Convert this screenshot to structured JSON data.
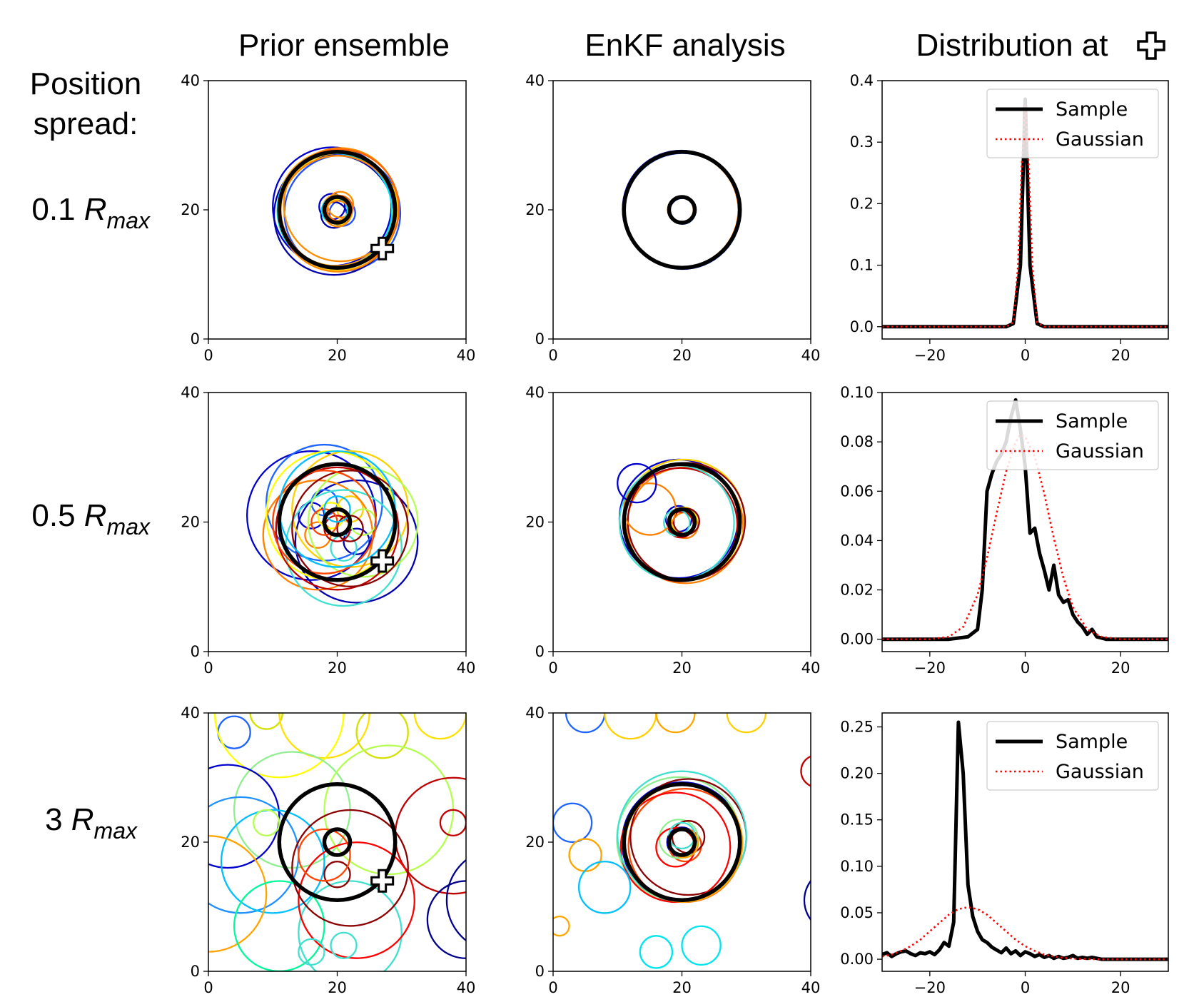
{
  "column_titles": [
    "Prior ensemble",
    "EnKF analysis",
    "Distribution at"
  ],
  "row_header": [
    "Position",
    "spread:"
  ],
  "rows": [
    {
      "prefix": "0.1 ",
      "symbol": "R",
      "subscript": "max"
    },
    {
      "prefix": "0.5 ",
      "symbol": "R",
      "subscript": "max"
    },
    {
      "prefix": "3 ",
      "symbol": "R",
      "subscript": "max"
    }
  ],
  "legend": {
    "sample": "Sample",
    "gaussian": "Gaussian"
  },
  "marker_icon": "white-cross-icon",
  "colors": {
    "truth": "#000000",
    "gaussian": "#ff0000",
    "sample": "#000000"
  },
  "chart_data": [
    {
      "type": "line",
      "title": "Distribution at",
      "row": "0.1 Rmax",
      "xlim": [
        -30,
        30
      ],
      "ylim": [
        -0.02,
        0.4
      ],
      "xticks": [
        -20,
        0,
        20
      ],
      "yticks": [
        0.0,
        0.1,
        0.2,
        0.3,
        0.4
      ],
      "ytick_labels": [
        "0.0",
        "0.1",
        "0.2",
        "0.3",
        "0.4"
      ],
      "legend_position": "top-right",
      "series": [
        {
          "name": "Sample",
          "style": "solid",
          "x": [
            -30,
            -4,
            -2.5,
            -1,
            0,
            1,
            2.5,
            4,
            30
          ],
          "y": [
            0,
            0,
            0.005,
            0.1,
            0.37,
            0.1,
            0.005,
            0,
            0
          ]
        },
        {
          "name": "Gaussian",
          "style": "dotted",
          "x": [
            -30,
            -4,
            -2.5,
            -1.5,
            -0.75,
            0,
            0.75,
            1.5,
            2.5,
            4,
            30
          ],
          "y": [
            0,
            0,
            0.007,
            0.1,
            0.26,
            0.36,
            0.26,
            0.1,
            0.007,
            0,
            0
          ]
        }
      ]
    },
    {
      "type": "line",
      "title": "Distribution at",
      "row": "0.5 Rmax",
      "xlim": [
        -30,
        30
      ],
      "ylim": [
        -0.005,
        0.1
      ],
      "xticks": [
        -20,
        0,
        20
      ],
      "yticks": [
        0.0,
        0.02,
        0.04,
        0.06,
        0.08,
        0.1
      ],
      "ytick_labels": [
        "0.00",
        "0.02",
        "0.04",
        "0.06",
        "0.08",
        "0.10"
      ],
      "legend_position": "top-right",
      "series": [
        {
          "name": "Sample",
          "style": "solid",
          "x": [
            -30,
            -16,
            -14,
            -12,
            -10,
            -9,
            -8,
            -7,
            -6,
            -5,
            -4,
            -3,
            -2,
            -1,
            0,
            1,
            2,
            3,
            4,
            5,
            6,
            7,
            8,
            9,
            10,
            11,
            12,
            13,
            14,
            15,
            16,
            17,
            30
          ],
          "y": [
            0,
            0,
            0.0005,
            0.001,
            0.004,
            0.02,
            0.06,
            0.067,
            0.072,
            0.075,
            0.08,
            0.09,
            0.097,
            0.085,
            0.07,
            0.043,
            0.045,
            0.035,
            0.028,
            0.02,
            0.03,
            0.018,
            0.015,
            0.016,
            0.01,
            0.007,
            0.005,
            0.002,
            0.004,
            0.001,
            0.0005,
            0,
            0
          ]
        },
        {
          "name": "Gaussian",
          "style": "dotted",
          "x": [
            -30,
            -20,
            -16,
            -13,
            -10,
            -8,
            -6,
            -4,
            -2,
            -1,
            0,
            2,
            4,
            6,
            8,
            10,
            13,
            16,
            20,
            30
          ],
          "y": [
            0,
            0,
            0.001,
            0.005,
            0.018,
            0.033,
            0.051,
            0.068,
            0.08,
            0.083,
            0.082,
            0.074,
            0.059,
            0.041,
            0.025,
            0.013,
            0.004,
            0.001,
            0,
            0
          ]
        }
      ]
    },
    {
      "type": "line",
      "title": "Distribution at",
      "row": "3 Rmax",
      "xlim": [
        -30,
        30
      ],
      "ylim": [
        -0.013,
        0.265
      ],
      "xticks": [
        -20,
        0,
        20
      ],
      "yticks": [
        0.0,
        0.05,
        0.1,
        0.15,
        0.2,
        0.25
      ],
      "ytick_labels": [
        "0.00",
        "0.05",
        "0.10",
        "0.15",
        "0.20",
        "0.25"
      ],
      "legend_position": "top-right",
      "series": [
        {
          "name": "Sample",
          "style": "solid",
          "x": [
            -30,
            -29,
            -28,
            -27,
            -26,
            -25,
            -24,
            -23,
            -22,
            -21,
            -20,
            -19,
            -18,
            -17,
            -16,
            -15,
            -14,
            -13,
            -12,
            -11,
            -10,
            -9,
            -8,
            -7,
            -6,
            -5,
            -4,
            -3,
            -2,
            -1,
            0,
            1,
            2,
            3,
            4,
            5,
            6,
            7,
            8,
            9,
            10,
            11,
            12,
            13,
            14,
            15,
            16,
            30
          ],
          "y": [
            0.005,
            0.007,
            0.003,
            0.006,
            0.008,
            0.009,
            0.006,
            0.004,
            0.007,
            0.006,
            0.008,
            0.005,
            0.01,
            0.018,
            0.014,
            0.04,
            0.255,
            0.2,
            0.08,
            0.046,
            0.03,
            0.021,
            0.018,
            0.013,
            0.01,
            0.007,
            0.012,
            0.006,
            0.009,
            0.004,
            0.008,
            0.006,
            0.003,
            0.005,
            0.002,
            0.004,
            0.001,
            0.003,
            0.001,
            0.002,
            0.004,
            0.001,
            0.002,
            0.001,
            0.002,
            0.001,
            0,
            0
          ]
        },
        {
          "name": "Gaussian",
          "style": "dotted",
          "x": [
            -30,
            -28,
            -26,
            -24,
            -22,
            -20,
            -18,
            -16,
            -14,
            -12,
            -10,
            -8,
            -6,
            -4,
            -2,
            0,
            2,
            4,
            6,
            8,
            10,
            12,
            14,
            16,
            18,
            20,
            30
          ],
          "y": [
            0.003,
            0.005,
            0.009,
            0.014,
            0.021,
            0.03,
            0.039,
            0.048,
            0.054,
            0.056,
            0.054,
            0.048,
            0.039,
            0.03,
            0.021,
            0.014,
            0.009,
            0.005,
            0.003,
            0.0015,
            0.0007,
            0.0003,
            0.0001,
            0,
            0,
            0,
            0
          ]
        }
      ]
    }
  ],
  "ensemble_panels": {
    "xlim": [
      0,
      40
    ],
    "ylim": [
      0,
      40
    ],
    "xticks": [
      0,
      20,
      40
    ],
    "yticks": [
      0,
      20,
      40
    ],
    "truth": {
      "center": [
        20,
        20
      ],
      "outer_radius": 9,
      "inner_radius": 2
    },
    "marker": [
      27,
      14
    ],
    "prior": [
      {
        "row": "0.1 Rmax",
        "members": [
          {
            "cx": 19.2,
            "cy": 20.5,
            "r": 9.2,
            "ri": 2,
            "color": "#0000cd"
          },
          {
            "cx": 20.8,
            "cy": 19.5,
            "r": 9.0,
            "ri": 2,
            "color": "#1e50ff"
          },
          {
            "cx": 19.5,
            "cy": 19.2,
            "r": 9.3,
            "ri": 2,
            "color": "#0000aa"
          },
          {
            "cx": 20.5,
            "cy": 20.8,
            "r": 8.8,
            "ri": 2,
            "color": "#ff8c00"
          },
          {
            "cx": 19.8,
            "cy": 20.3,
            "r": 9.0,
            "ri": 2,
            "color": "#ffa500"
          },
          {
            "cx": 20.3,
            "cy": 19.7,
            "r": 9.1,
            "ri": 2,
            "color": "#ffd000"
          },
          {
            "cx": 19.6,
            "cy": 19.9,
            "r": 8.9,
            "ri": 2,
            "color": "#00e5ee"
          },
          {
            "cx": 20.4,
            "cy": 20.2,
            "r": 9.2,
            "ri": 2,
            "color": "#ff6400"
          },
          {
            "cx": 20.1,
            "cy": 19.4,
            "r": 9.0,
            "ri": 2,
            "color": "#ff8800"
          }
        ]
      },
      {
        "row": "0.5 Rmax",
        "members": [
          {
            "cx": 16,
            "cy": 21,
            "r": 10,
            "ri": 2,
            "color": "#0000cd"
          },
          {
            "cx": 23,
            "cy": 17,
            "r": 9.5,
            "ri": 2,
            "color": "#0000b0"
          },
          {
            "cx": 18,
            "cy": 23,
            "r": 9,
            "ri": 2,
            "color": "#1e64ff"
          },
          {
            "cx": 22,
            "cy": 22,
            "r": 9,
            "ri": 2,
            "color": "#ffd000"
          },
          {
            "cx": 17,
            "cy": 18,
            "r": 8.5,
            "ri": 2,
            "color": "#ff7f00"
          },
          {
            "cx": 21,
            "cy": 16,
            "r": 9,
            "ri": 2,
            "color": "#40e0d0"
          },
          {
            "cx": 19,
            "cy": 21,
            "r": 10,
            "ri": 2,
            "color": "#ffff00"
          },
          {
            "cx": 24,
            "cy": 20,
            "r": 8.5,
            "ri": 2,
            "color": "#b4ff50"
          },
          {
            "cx": 20,
            "cy": 19,
            "r": 9.5,
            "ri": 2,
            "color": "#c00000"
          },
          {
            "cx": 22,
            "cy": 19,
            "r": 9,
            "ri": 2,
            "color": "#8b0000"
          },
          {
            "cx": 18,
            "cy": 20,
            "r": 8,
            "ri": 2,
            "color": "#ff4500"
          },
          {
            "cx": 20,
            "cy": 22,
            "r": 9,
            "ri": 2,
            "color": "#00bfff"
          }
        ]
      },
      {
        "row": "3 Rmax",
        "members": [
          {
            "cx": 4,
            "cy": 37,
            "r": 2.5,
            "ri": 0,
            "color": "#1e64ff"
          },
          {
            "cx": 9,
            "cy": 40,
            "r": 2.5,
            "ri": 0,
            "color": "#d4e000"
          },
          {
            "cx": 18,
            "cy": 40,
            "r": 7,
            "ri": 0,
            "color": "#ffe000"
          },
          {
            "cx": 27,
            "cy": 37,
            "r": 4,
            "ri": 0,
            "color": "#d4e000"
          },
          {
            "cx": 36,
            "cy": 40,
            "r": 4,
            "ri": 0,
            "color": "#ffe000"
          },
          {
            "cx": 11,
            "cy": 40,
            "r": 10,
            "ri": 0,
            "color": "#ffff00"
          },
          {
            "cx": 13,
            "cy": 25,
            "r": 9,
            "ri": 0,
            "color": "#90ee90"
          },
          {
            "cx": 28,
            "cy": 25,
            "r": 10,
            "ri": 0,
            "color": "#b4ff50"
          },
          {
            "cx": 38,
            "cy": 21,
            "r": 9,
            "ri": 0,
            "color": "#c00000"
          },
          {
            "cx": 38,
            "cy": 23,
            "r": 2,
            "ri": 0,
            "color": "#c00000"
          },
          {
            "cx": 5,
            "cy": 18,
            "r": 9,
            "ri": 0,
            "color": "#1e90ff"
          },
          {
            "cx": 3,
            "cy": 24,
            "r": 8,
            "ri": 0,
            "color": "#0000cd"
          },
          {
            "cx": 10,
            "cy": 17,
            "r": 8,
            "ri": 0,
            "color": "#00bfff"
          },
          {
            "cx": 9,
            "cy": 23,
            "r": 2,
            "ri": 0,
            "color": "#b4ff50"
          },
          {
            "cx": 0,
            "cy": 12,
            "r": 9,
            "ri": 0,
            "color": "#ffa500"
          },
          {
            "cx": 11,
            "cy": 7,
            "r": 7,
            "ri": 0,
            "color": "#00fa9a"
          },
          {
            "cx": 22,
            "cy": 6,
            "r": 8,
            "ri": 0,
            "color": "#40e0d0"
          },
          {
            "cx": 23,
            "cy": 11,
            "r": 9,
            "ri": 0,
            "color": "#ff0000"
          },
          {
            "cx": 22,
            "cy": 16,
            "r": 9,
            "ri": 0,
            "color": "#8b0000"
          },
          {
            "cx": 20,
            "cy": 15,
            "r": 2,
            "ri": 0,
            "color": "#8b0000"
          },
          {
            "cx": 18,
            "cy": 18,
            "r": 4,
            "ri": 0,
            "color": "#ff4500"
          },
          {
            "cx": 16,
            "cy": 3,
            "r": 2,
            "ri": 0,
            "color": "#40e0d0"
          },
          {
            "cx": 21,
            "cy": 4,
            "r": 2,
            "ri": 0,
            "color": "#40e0d0"
          },
          {
            "cx": 45,
            "cy": 11,
            "r": 8,
            "ri": 0,
            "color": "#00008b"
          },
          {
            "cx": 40,
            "cy": 8,
            "r": 6,
            "ri": 0,
            "color": "#00008b"
          }
        ]
      }
    ],
    "analysis": [
      {
        "row": "0.1 Rmax",
        "members": [
          {
            "cx": 19.9,
            "cy": 20.1,
            "r": 9.1,
            "ri": 2,
            "color": "#0000cd"
          },
          {
            "cx": 20.1,
            "cy": 19.8,
            "r": 9.0,
            "ri": 2,
            "color": "#1e50ff"
          },
          {
            "cx": 19.8,
            "cy": 20.0,
            "r": 8.95,
            "ri": 2,
            "color": "#ff8c00"
          }
        ]
      },
      {
        "row": "0.5 Rmax",
        "members": [
          {
            "cx": 19.5,
            "cy": 20.5,
            "r": 9.2,
            "ri": 2,
            "color": "#0000cd"
          },
          {
            "cx": 20.5,
            "cy": 19.5,
            "r": 9.0,
            "ri": 2,
            "color": "#ff7f00"
          },
          {
            "cx": 19.8,
            "cy": 19.6,
            "r": 8.8,
            "ri": 2,
            "color": "#c00000"
          },
          {
            "cx": 20.3,
            "cy": 20.3,
            "r": 9.4,
            "ri": 2,
            "color": "#ffd000"
          },
          {
            "cx": 19.2,
            "cy": 19.9,
            "r": 8.9,
            "ri": 2,
            "color": "#40e0d0"
          },
          {
            "cx": 20.7,
            "cy": 20.1,
            "r": 9.1,
            "ri": 2,
            "color": "#8b0000"
          },
          {
            "cx": 15,
            "cy": 22,
            "r": 4,
            "ri": 0,
            "color": "#ff7f00"
          },
          {
            "cx": 13,
            "cy": 26,
            "r": 3,
            "ri": 0,
            "color": "#0000cd"
          }
        ]
      },
      {
        "row": "3 Rmax",
        "members": [
          {
            "cx": 20,
            "cy": 20,
            "r": 9.3,
            "ri": 2.3,
            "color": "#0000cd"
          },
          {
            "cx": 20.5,
            "cy": 19.5,
            "r": 8.8,
            "ri": 2.5,
            "color": "#ff4500"
          },
          {
            "cx": 19.5,
            "cy": 20.5,
            "r": 9.6,
            "ri": 3,
            "color": "#90ee90"
          },
          {
            "cx": 21,
            "cy": 20.8,
            "r": 9.0,
            "ri": 2.5,
            "color": "#8b0000"
          },
          {
            "cx": 19,
            "cy": 19.2,
            "r": 8.5,
            "ri": 3,
            "color": "#ff0000"
          },
          {
            "cx": 20,
            "cy": 21,
            "r": 10,
            "ri": 2,
            "color": "#40e0d0"
          },
          {
            "cx": 20.3,
            "cy": 19.8,
            "r": 9.1,
            "ri": 2.2,
            "color": "#ffa500"
          },
          {
            "cx": 5,
            "cy": 40,
            "r": 3,
            "ri": 0,
            "color": "#1e64ff"
          },
          {
            "cx": 12,
            "cy": 40,
            "r": 4,
            "ri": 0,
            "color": "#ffd000"
          },
          {
            "cx": 19,
            "cy": 40,
            "r": 3,
            "ri": 0,
            "color": "#ffa500"
          },
          {
            "cx": 30,
            "cy": 40,
            "r": 3,
            "ri": 0,
            "color": "#ffd000"
          },
          {
            "cx": 3,
            "cy": 23,
            "r": 3,
            "ri": 0,
            "color": "#1e64ff"
          },
          {
            "cx": 5,
            "cy": 18,
            "r": 2.5,
            "ri": 0,
            "color": "#ffa500"
          },
          {
            "cx": 8,
            "cy": 13,
            "r": 4,
            "ri": 0,
            "color": "#00bfff"
          },
          {
            "cx": 23,
            "cy": 4,
            "r": 3,
            "ri": 0,
            "color": "#00e5ee"
          },
          {
            "cx": 16,
            "cy": 3,
            "r": 2.5,
            "ri": 0,
            "color": "#00e5ee"
          },
          {
            "cx": 44,
            "cy": 11,
            "r": 5,
            "ri": 0,
            "color": "#00008b"
          },
          {
            "cx": 41,
            "cy": 31,
            "r": 2.5,
            "ri": 0,
            "color": "#c00000"
          },
          {
            "cx": 1,
            "cy": 7,
            "r": 1.5,
            "ri": 0,
            "color": "#ffa500"
          }
        ]
      }
    ]
  }
}
